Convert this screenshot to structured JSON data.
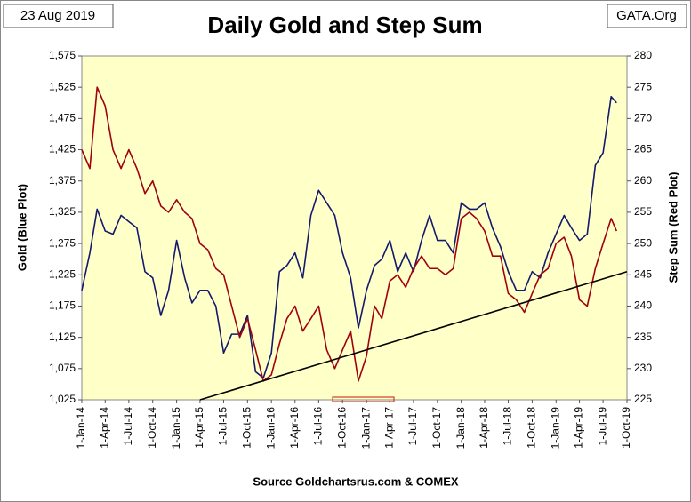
{
  "chart_data": {
    "type": "line",
    "date": "23 Aug 2019",
    "title": "Daily Gold and Step Sum",
    "source_tag": "GATA.Org",
    "ylabel": "Gold  (Blue Plot)",
    "y2label": "Step Sum  (Red Plot)",
    "footer": "Source Goldchartsrus.com & COMEX",
    "x": [
      "2014-01-01",
      "2014-02-01",
      "2014-03-01",
      "2014-04-01",
      "2014-05-01",
      "2014-06-01",
      "2014-07-01",
      "2014-08-01",
      "2014-09-01",
      "2014-10-01",
      "2014-11-01",
      "2014-12-01",
      "2015-01-01",
      "2015-02-01",
      "2015-03-01",
      "2015-04-01",
      "2015-05-01",
      "2015-06-01",
      "2015-07-01",
      "2015-08-01",
      "2015-09-01",
      "2015-10-01",
      "2015-11-01",
      "2015-12-01",
      "2016-01-01",
      "2016-02-01",
      "2016-03-01",
      "2016-04-01",
      "2016-05-01",
      "2016-06-01",
      "2016-07-01",
      "2016-08-01",
      "2016-09-01",
      "2016-10-01",
      "2016-11-01",
      "2016-12-01",
      "2017-01-01",
      "2017-02-01",
      "2017-03-01",
      "2017-04-01",
      "2017-05-01",
      "2017-06-01",
      "2017-07-01",
      "2017-08-01",
      "2017-09-01",
      "2017-10-01",
      "2017-11-01",
      "2017-12-01",
      "2018-01-01",
      "2018-02-01",
      "2018-03-01",
      "2018-04-01",
      "2018-05-01",
      "2018-06-01",
      "2018-07-01",
      "2018-08-01",
      "2018-09-01",
      "2018-10-01",
      "2018-11-01",
      "2018-12-01",
      "2019-01-01",
      "2019-02-01",
      "2019-03-01",
      "2019-04-01",
      "2019-05-01",
      "2019-06-01",
      "2019-07-01",
      "2019-08-01",
      "2019-08-22"
    ],
    "series": [
      {
        "name": "Gold",
        "color": "#14196e",
        "values": [
          1200,
          1260,
          1330,
          1295,
          1290,
          1320,
          1310,
          1300,
          1230,
          1220,
          1160,
          1200,
          1280,
          1220,
          1180,
          1200,
          1200,
          1175,
          1100,
          1130,
          1130,
          1160,
          1070,
          1060,
          1100,
          1230,
          1240,
          1260,
          1220,
          1320,
          1360,
          1340,
          1320,
          1260,
          1220,
          1140,
          1200,
          1240,
          1250,
          1280,
          1230,
          1260,
          1230,
          1280,
          1320,
          1280,
          1280,
          1260,
          1340,
          1330,
          1330,
          1340,
          1300,
          1270,
          1230,
          1200,
          1200,
          1230,
          1220,
          1260,
          1290,
          1320,
          1300,
          1280,
          1290,
          1400,
          1420,
          1510,
          1500
        ]
      },
      {
        "name": "Step Sum",
        "color": "#a00010",
        "axis": "y2",
        "values": [
          265,
          262,
          275,
          272,
          265,
          262,
          265,
          262,
          258,
          260,
          256,
          255,
          257,
          255,
          254,
          250,
          249,
          246,
          245,
          240,
          235,
          238,
          233,
          228,
          229,
          234,
          238,
          240,
          236,
          238,
          240,
          233,
          230,
          233,
          236,
          228,
          232,
          240,
          238,
          244,
          245,
          243,
          246,
          248,
          246,
          246,
          245,
          246,
          254,
          255,
          254,
          252,
          248,
          248,
          242,
          241,
          239,
          242,
          245,
          246,
          250,
          251,
          248,
          241,
          240,
          246,
          250,
          254,
          252
        ]
      }
    ],
    "trend_line": {
      "x": [
        "2015-04-01",
        "2019-10-01"
      ],
      "values": [
        225,
        245.5
      ],
      "axis": "y2",
      "color": "#000000"
    },
    "xlim": [
      "2014-01-01",
      "2019-10-01"
    ],
    "xticks": [
      {
        "value": "2014-01-01",
        "label": "1-Jan-14"
      },
      {
        "value": "2014-04-01",
        "label": "1-Apr-14"
      },
      {
        "value": "2014-07-01",
        "label": "1-Jul-14"
      },
      {
        "value": "2014-10-01",
        "label": "1-Oct-14"
      },
      {
        "value": "2015-01-01",
        "label": "1-Jan-15"
      },
      {
        "value": "2015-04-01",
        "label": "1-Apr-15"
      },
      {
        "value": "2015-07-01",
        "label": "1-Jul-15"
      },
      {
        "value": "2015-10-01",
        "label": "1-Oct-15"
      },
      {
        "value": "2016-01-01",
        "label": "1-Jan-16"
      },
      {
        "value": "2016-04-01",
        "label": "1-Apr-16"
      },
      {
        "value": "2016-07-01",
        "label": "1-Jul-16"
      },
      {
        "value": "2016-10-01",
        "label": "1-Oct-16"
      },
      {
        "value": "2017-01-01",
        "label": "1-Jan-17"
      },
      {
        "value": "2017-04-01",
        "label": "1-Apr-17"
      },
      {
        "value": "2017-07-01",
        "label": "1-Jul-17"
      },
      {
        "value": "2017-10-01",
        "label": "1-Oct-17"
      },
      {
        "value": "2018-01-01",
        "label": "1-Jan-18"
      },
      {
        "value": "2018-04-01",
        "label": "1-Apr-18"
      },
      {
        "value": "2018-07-01",
        "label": "1-Jul-18"
      },
      {
        "value": "2018-10-01",
        "label": "1-Oct-18"
      },
      {
        "value": "2019-01-01",
        "label": "1-Jan-19"
      },
      {
        "value": "2019-04-01",
        "label": "1-Apr-19"
      },
      {
        "value": "2019-07-01",
        "label": "1-Jul-19"
      },
      {
        "value": "2019-10-01",
        "label": "1-Oct-19"
      }
    ],
    "ylim": [
      1025,
      1575
    ],
    "yticks": [
      {
        "value": 1025,
        "label": "1,025"
      },
      {
        "value": 1075,
        "label": "1,075"
      },
      {
        "value": 1125,
        "label": "1,125"
      },
      {
        "value": 1175,
        "label": "1,175"
      },
      {
        "value": 1225,
        "label": "1,225"
      },
      {
        "value": 1275,
        "label": "1,275"
      },
      {
        "value": 1325,
        "label": "1,325"
      },
      {
        "value": 1375,
        "label": "1,375"
      },
      {
        "value": 1425,
        "label": "1,425"
      },
      {
        "value": 1475,
        "label": "1,475"
      },
      {
        "value": 1525,
        "label": "1,525"
      },
      {
        "value": 1575,
        "label": "1,575"
      }
    ],
    "y2lim": [
      225,
      280
    ],
    "y2ticks": [
      225,
      230,
      235,
      240,
      245,
      250,
      255,
      260,
      265,
      270,
      275,
      280
    ],
    "grid": false
  }
}
